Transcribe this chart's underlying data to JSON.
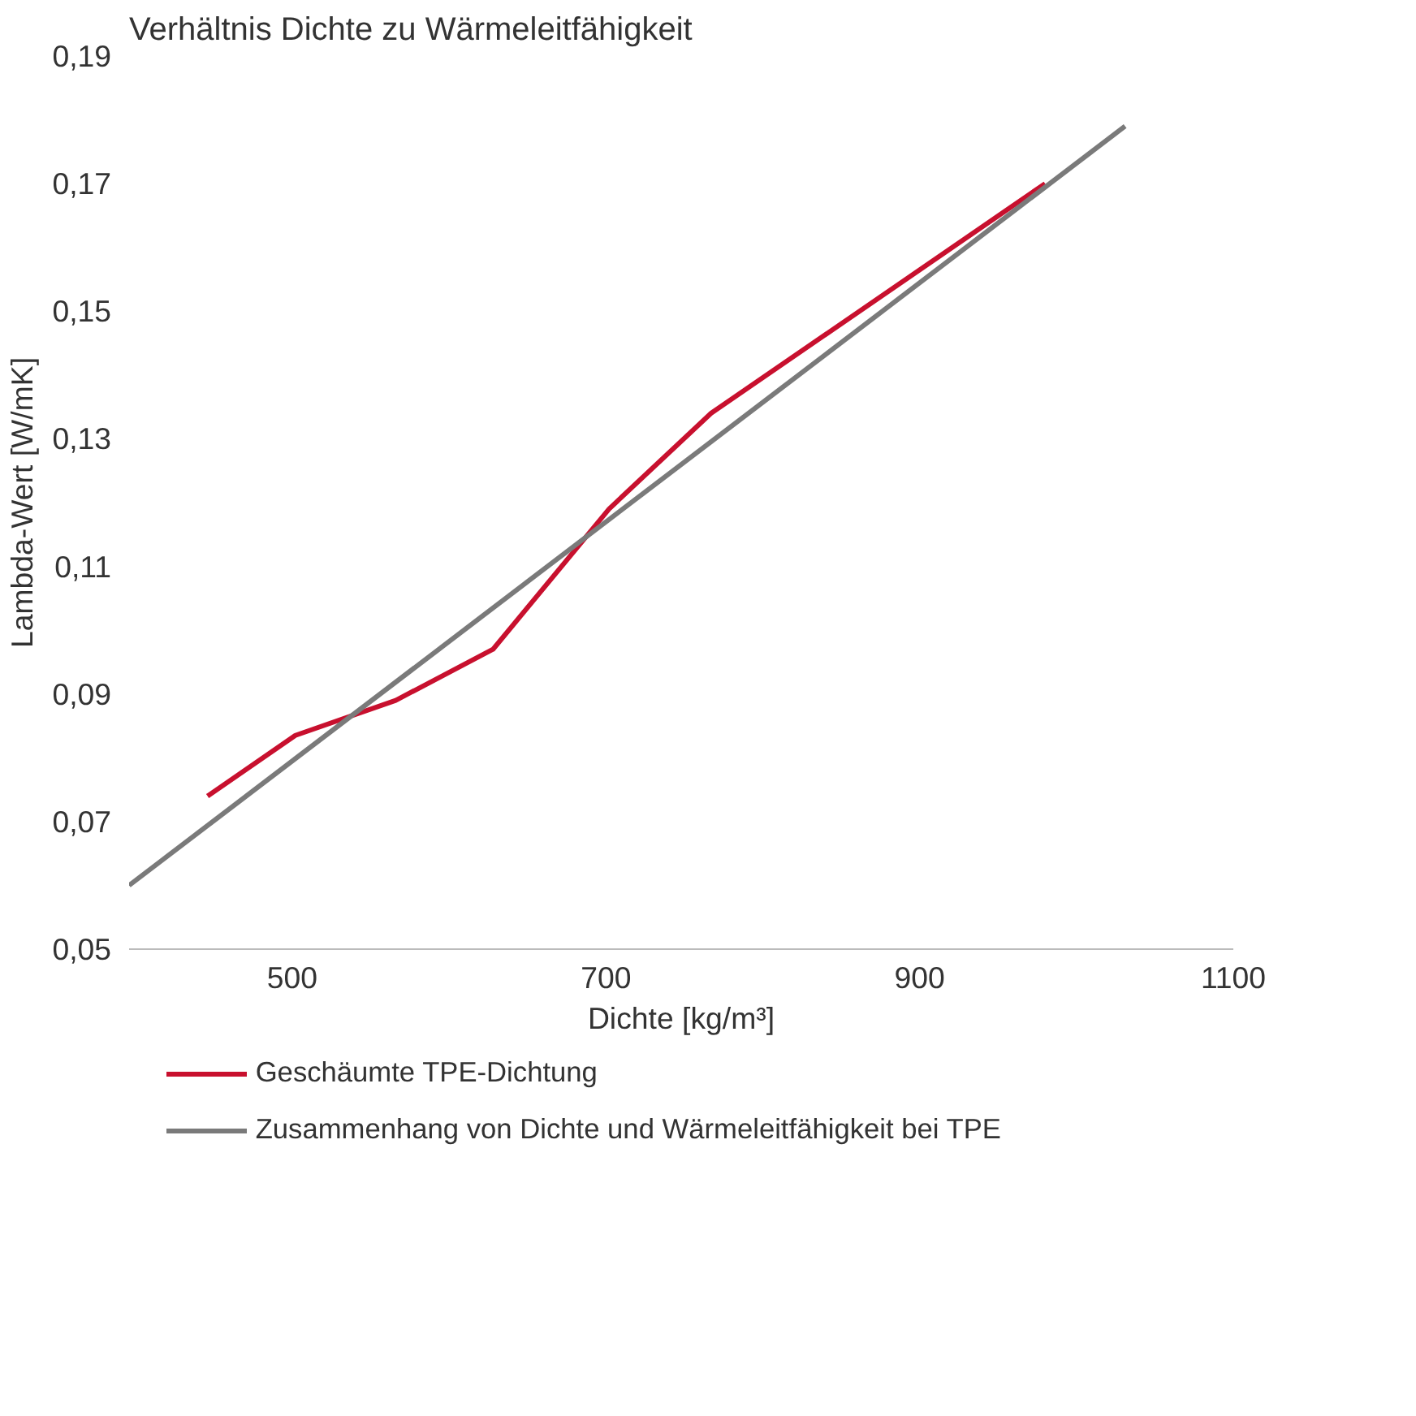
{
  "chart_data": {
    "type": "line",
    "title": "Verhältnis Dichte zu Wärmeleitfähigkeit",
    "xlabel": "Dichte [kg/m³]",
    "ylabel": "Lambda-Wert [W/mK]",
    "series": [
      {
        "name": "Geschäumte TPE-Dichtung",
        "color": "#c8102e",
        "x": [
          446,
          502,
          566,
          628,
          702,
          767,
          980
        ],
        "values": [
          0.074,
          0.0835,
          0.089,
          0.097,
          0.119,
          0.134,
          0.17
        ]
      },
      {
        "name": "Zusammenhang von Dichte und Wärmeleitfähigkeit bei TPE",
        "color": "#7a7a7a",
        "x": [
          396,
          1031
        ],
        "values": [
          0.06,
          0.179
        ]
      }
    ],
    "xlim": [
      396,
      1100
    ],
    "ylim": [
      0.05,
      0.19
    ],
    "xticks": [
      500,
      700,
      900,
      1100
    ],
    "yticks": [
      {
        "value": 0.05,
        "label": "0,05"
      },
      {
        "value": 0.07,
        "label": "0,07"
      },
      {
        "value": 0.09,
        "label": "0,09"
      },
      {
        "value": 0.11,
        "label": "0,11"
      },
      {
        "value": 0.13,
        "label": "0,13"
      },
      {
        "value": 0.15,
        "label": "0,15"
      },
      {
        "value": 0.17,
        "label": "0,17"
      },
      {
        "value": 0.19,
        "label": "0,19"
      }
    ],
    "grid": false,
    "legend": "bottom",
    "marker": "none",
    "line_style": "solid"
  }
}
